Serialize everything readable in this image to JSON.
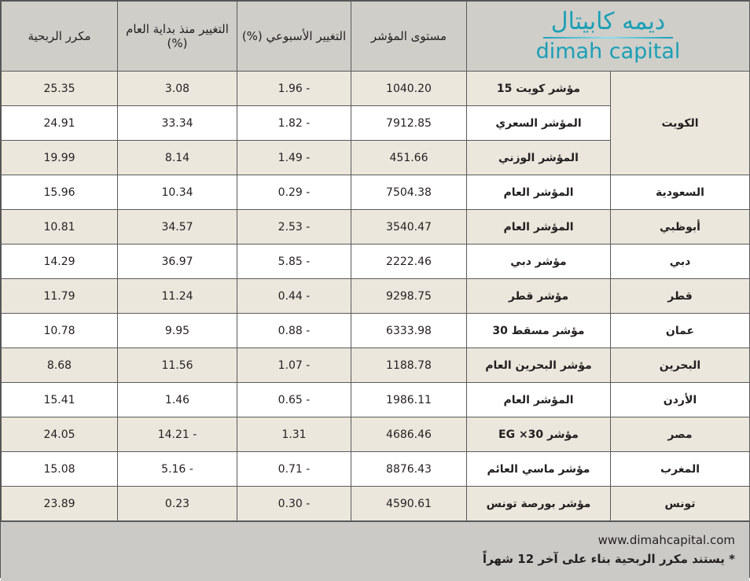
{
  "logo": {
    "arabic": "ديمه كابيتال",
    "english": "dimah capital",
    "color": "#1a9fb6"
  },
  "headers": {
    "pe": "مكرر الربحية",
    "ytd": "التغيير منذ بداية العام (%)",
    "weekly": "التغيير الأسبوعي (%)",
    "level": "مستوى المؤشر"
  },
  "rows": [
    {
      "country": "الكويت",
      "index": "مؤشر كويت 15",
      "level": "1040.20",
      "weekly": "1.96 -",
      "ytd": "3.08",
      "pe": "25.35"
    },
    {
      "country": "",
      "index": "المؤشر السعري",
      "level": "7912.85",
      "weekly": "1.82 -",
      "ytd": "33.34",
      "pe": "24.91"
    },
    {
      "country": "",
      "index": "المؤشر الوزني",
      "level": "451.66",
      "weekly": "1.49 -",
      "ytd": "8.14",
      "pe": "19.99"
    },
    {
      "country": "السعودية",
      "index": "المؤشر العام",
      "level": "7504.38",
      "weekly": "0.29 -",
      "ytd": "10.34",
      "pe": "15.96"
    },
    {
      "country": "أبوظبي",
      "index": "المؤشر العام",
      "level": "3540.47",
      "weekly": "2.53 -",
      "ytd": "34.57",
      "pe": "10.81"
    },
    {
      "country": "دبي",
      "index": "مؤشر دبي",
      "level": "2222.46",
      "weekly": "5.85 -",
      "ytd": "36.97",
      "pe": "14.29"
    },
    {
      "country": "قطر",
      "index": "مؤشر قطر",
      "level": "9298.75",
      "weekly": "0.44 -",
      "ytd": "11.24",
      "pe": "11.79"
    },
    {
      "country": "عمان",
      "index": "مؤشر مسقط 30",
      "level": "6333.98",
      "weekly": "0.88 -",
      "ytd": "9.95",
      "pe": "10.78"
    },
    {
      "country": "البحرين",
      "index": "مؤشر البحرين العام",
      "level": "1188.78",
      "weekly": "1.07 -",
      "ytd": "11.56",
      "pe": "8.68"
    },
    {
      "country": "الأردن",
      "index": "المؤشر العام",
      "level": "1986.11",
      "weekly": "0.65 -",
      "ytd": "1.46",
      "pe": "15.41"
    },
    {
      "country": "مصر",
      "index": "مؤشر EG ×30",
      "level": "4686.46",
      "weekly": "1.31",
      "ytd": "14.21 -",
      "pe": "24.05"
    },
    {
      "country": "المغرب",
      "index": "مؤشر ماسي العائم",
      "level": "8876.43",
      "weekly": "0.71 -",
      "ytd": "5.16 -",
      "pe": "15.08"
    },
    {
      "country": "تونس",
      "index": "مؤشر بورصة تونس",
      "level": "4590.61",
      "weekly": "0.30 -",
      "ytd": "0.23",
      "pe": "23.89"
    }
  ],
  "footer": {
    "website": "www.dimahcapital.com",
    "note": "* يستند مكرر الربحية بناء على آخر 12 شهراً"
  },
  "colors": {
    "header": "#cfcec9",
    "shaded_row": "#ebe7dd",
    "footer": "#cbcac6"
  }
}
